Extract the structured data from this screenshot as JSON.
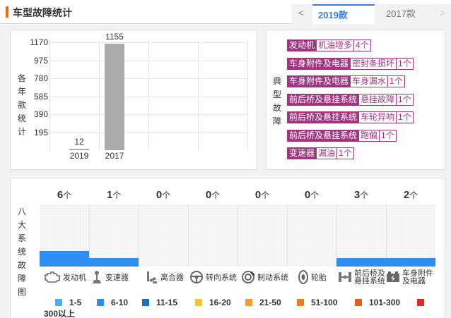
{
  "header": {
    "title": "车型故障统计",
    "prev_arrow": "<",
    "next_arrow": ">"
  },
  "year_tabs": [
    {
      "label": "2019款",
      "active": true
    },
    {
      "label": "2017款",
      "active": false
    }
  ],
  "year_chart": {
    "ylabel": [
      "各",
      "年",
      "款",
      "统",
      "计"
    ],
    "yticks": [
      "1170",
      "975",
      "780",
      "585",
      "390",
      "195"
    ],
    "accent_color": "#aaaaaa"
  },
  "chart_data": [
    {
      "type": "bar",
      "categories": [
        "2019",
        "2017"
      ],
      "values": [
        12,
        1155
      ],
      "ylabel": "各年款统计",
      "ylim": [
        0,
        1170
      ],
      "grid": true
    },
    {
      "type": "bar",
      "categories": [
        "发动机",
        "变速器",
        "离合器",
        "转向系统",
        "制动系统",
        "轮胎",
        "前后桥及悬挂系统",
        "车身附件及电器"
      ],
      "values": [
        6,
        1,
        0,
        0,
        0,
        0,
        3,
        2
      ],
      "ylabel": "八大系统故障图",
      "unit": "个"
    }
  ],
  "typical": {
    "label": [
      "典",
      "型",
      "故",
      "障"
    ],
    "items": [
      {
        "system": "发动机",
        "issue": "机油增多",
        "count": "4个"
      },
      {
        "system": "车身附件及电器",
        "issue": "密封条损坏",
        "count": "1个"
      },
      {
        "system": "车身附件及电器",
        "issue": "车身漏水",
        "count": "1个"
      },
      {
        "system": "前后桥及悬挂系统",
        "issue": "悬挂故障",
        "count": "1个"
      },
      {
        "system": "前后桥及悬挂系统",
        "issue": "车轮异响",
        "count": "1个"
      },
      {
        "system": "前后桥及悬挂系统",
        "issue": "跑偏",
        "count": "1个"
      },
      {
        "system": "变速器",
        "issue": "漏油",
        "count": "1个"
      }
    ],
    "color": "#a0357f"
  },
  "systems": {
    "ylabel": [
      "八",
      "大",
      "系",
      "统",
      "故",
      "障",
      "图"
    ],
    "unit": "个",
    "fill_color": "#2f8ef5",
    "columns": [
      {
        "count": "6",
        "name": "发动机",
        "icon": "engine-icon"
      },
      {
        "count": "1",
        "name": "变速器",
        "icon": "gear-shift-icon"
      },
      {
        "count": "0",
        "name": "离合器",
        "icon": "clutch-pedal-icon"
      },
      {
        "count": "0",
        "name": "转向系统",
        "icon": "steering-wheel-icon"
      },
      {
        "count": "0",
        "name": "制动系统",
        "icon": "brake-disc-icon"
      },
      {
        "count": "0",
        "name": "轮胎",
        "icon": "tire-icon"
      },
      {
        "count": "3",
        "name": "前后桥及\n悬挂系统",
        "icon": "axle-icon"
      },
      {
        "count": "2",
        "name": "车身附件\n及电器",
        "icon": "car-battery-icon"
      }
    ]
  },
  "legend": [
    {
      "label": "1-5",
      "color": "#4aaff5"
    },
    {
      "label": "6-10",
      "color": "#2f8ef5"
    },
    {
      "label": "11-15",
      "color": "#1a6fc0"
    },
    {
      "label": "16-20",
      "color": "#f7c526"
    },
    {
      "label": "21-50",
      "color": "#f49b3a"
    },
    {
      "label": "51-100",
      "color": "#f07a22"
    },
    {
      "label": "101-300",
      "color": "#ee5a1e"
    },
    {
      "label": "300以上",
      "color": "#e82424"
    }
  ]
}
